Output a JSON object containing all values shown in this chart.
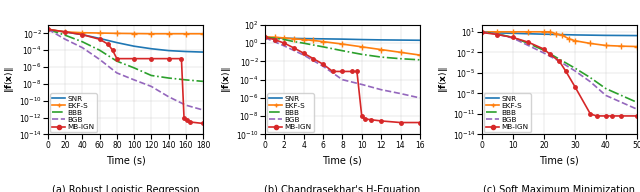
{
  "panels": [
    {
      "title": "(a) Robust Logistic Regression",
      "xlabel": "Time (s)",
      "xlim": [
        0,
        180
      ],
      "xticks": [
        0,
        20,
        40,
        60,
        80,
        100,
        120,
        140,
        160,
        180
      ],
      "ylim": [
        1e-14,
        0.1
      ],
      "curves": {
        "SNR": {
          "color": "#1f77b4",
          "ls": "-",
          "lw": 1.2,
          "marker": null,
          "ms": 0,
          "x": [
            0,
            10,
            20,
            40,
            60,
            80,
            100,
            120,
            140,
            160,
            180
          ],
          "y": [
            0.03,
            0.02,
            0.015,
            0.007,
            0.0025,
            0.0008,
            0.0003,
            0.00015,
            9e-05,
            7e-05,
            6e-05
          ]
        },
        "EKF-S": {
          "color": "#ff7f0e",
          "ls": "-",
          "lw": 1.2,
          "marker": "+",
          "ms": 4,
          "x": [
            0,
            20,
            40,
            60,
            80,
            100,
            120,
            140,
            160,
            180
          ],
          "y": [
            0.03,
            0.015,
            0.012,
            0.011,
            0.01,
            0.0095,
            0.009,
            0.009,
            0.009,
            0.009
          ]
        },
        "BBB": {
          "color": "#2ca02c",
          "ls": "-.",
          "lw": 1.2,
          "marker": null,
          "ms": 0,
          "x": [
            0,
            20,
            40,
            60,
            80,
            100,
            120,
            140,
            160,
            180
          ],
          "y": [
            0.03,
            0.006,
            0.001,
            0.0001,
            5e-06,
            8e-07,
            1e-07,
            5e-08,
            3e-08,
            2e-08
          ]
        },
        "BGB": {
          "color": "#9467bd",
          "ls": "--",
          "lw": 1.2,
          "marker": null,
          "ms": 0,
          "x": [
            0,
            20,
            40,
            60,
            80,
            100,
            120,
            140,
            160,
            180
          ],
          "y": [
            0.03,
            0.002,
            0.0002,
            8e-06,
            2e-07,
            3e-08,
            5e-09,
            3e-10,
            3e-11,
            8e-12
          ]
        },
        "MB-IGN": {
          "color": "#d62728",
          "ls": "-",
          "lw": 1.2,
          "marker": "o",
          "ms": 2.5,
          "x": [
            0,
            20,
            40,
            60,
            70,
            75,
            80,
            100,
            120,
            140,
            155,
            158,
            162,
            165,
            180
          ],
          "y": [
            0.03,
            0.015,
            0.007,
            0.002,
            0.0005,
            0.0001,
            1e-05,
            1e-05,
            1e-05,
            1e-05,
            1e-05,
            1e-12,
            5e-13,
            3e-13,
            2e-13
          ]
        }
      }
    },
    {
      "title": "(b) Chandrasekhar's H-Equation",
      "xlabel": "Time (s)",
      "xlim": [
        0,
        16
      ],
      "xticks": [
        0,
        2,
        4,
        6,
        8,
        10,
        12,
        14,
        16
      ],
      "ylim": [
        1e-10,
        100.0
      ],
      "curves": {
        "SNR": {
          "color": "#1f77b4",
          "ls": "-",
          "lw": 1.2,
          "marker": null,
          "ms": 0,
          "x": [
            0,
            2,
            4,
            6,
            8,
            10,
            12,
            14,
            16
          ],
          "y": [
            4.0,
            3.5,
            3.2,
            3.0,
            2.8,
            2.5,
            2.3,
            2.2,
            2.1
          ]
        },
        "EKF-S": {
          "color": "#ff7f0e",
          "ls": "-",
          "lw": 1.2,
          "marker": "+",
          "ms": 4,
          "x": [
            0,
            1,
            2,
            3,
            4,
            5,
            6,
            8,
            10,
            12,
            14,
            16
          ],
          "y": [
            5.0,
            4.5,
            3.8,
            3.0,
            2.5,
            2.0,
            1.5,
            0.8,
            0.4,
            0.2,
            0.1,
            0.05
          ]
        },
        "BBB": {
          "color": "#2ca02c",
          "ls": "-.",
          "lw": 1.2,
          "marker": null,
          "ms": 0,
          "x": [
            0,
            1,
            2,
            3,
            4,
            6,
            8,
            10,
            12,
            14,
            16
          ],
          "y": [
            4.5,
            3.5,
            2.5,
            1.5,
            1.0,
            0.4,
            0.15,
            0.06,
            0.03,
            0.02,
            0.015
          ]
        },
        "BGB": {
          "color": "#9467bd",
          "ls": "--",
          "lw": 1.2,
          "marker": null,
          "ms": 0,
          "x": [
            0,
            2,
            4,
            6,
            8,
            10,
            12,
            14,
            16
          ],
          "y": [
            4.0,
            0.5,
            0.05,
            0.003,
            0.0001,
            3e-05,
            8e-06,
            3e-06,
            1e-06
          ]
        },
        "MB-IGN": {
          "color": "#d62728",
          "ls": "-",
          "lw": 1.2,
          "marker": "o",
          "ms": 2.5,
          "x": [
            0,
            1,
            2,
            3,
            4,
            5,
            6,
            7,
            8,
            9,
            9.5,
            10,
            10.3,
            11,
            12,
            14,
            16
          ],
          "y": [
            4.5,
            2.5,
            1.0,
            0.3,
            0.08,
            0.02,
            0.005,
            0.0008,
            0.0008,
            0.0008,
            0.0008,
            1e-08,
            5e-09,
            4e-09,
            3e-09,
            2e-09,
            2e-09
          ]
        }
      }
    },
    {
      "title": "(c) Soft Maximum Minimization",
      "xlabel": "Time (s)",
      "xlim": [
        0,
        50
      ],
      "xticks": [
        0,
        10,
        20,
        30,
        40,
        50
      ],
      "ylim": [
        1e-14,
        100.0
      ],
      "curves": {
        "SNR": {
          "color": "#1f77b4",
          "ls": "-",
          "lw": 1.2,
          "marker": null,
          "ms": 0,
          "x": [
            0,
            5,
            10,
            20,
            30,
            40,
            50
          ],
          "y": [
            8.0,
            7.0,
            6.0,
            4.5,
            3.5,
            3.0,
            2.8
          ]
        },
        "EKF-S": {
          "color": "#ff7f0e",
          "ls": "-",
          "lw": 1.2,
          "marker": "+",
          "ms": 4,
          "x": [
            0,
            5,
            10,
            15,
            20,
            22,
            24,
            26,
            28,
            30,
            35,
            40,
            45,
            50
          ],
          "y": [
            10.0,
            10.0,
            10.0,
            10.0,
            10.0,
            10.0,
            5.0,
            3.0,
            1.0,
            0.5,
            0.2,
            0.1,
            0.08,
            0.07
          ]
        },
        "BBB": {
          "color": "#2ca02c",
          "ls": "-.",
          "lw": 1.2,
          "marker": null,
          "ms": 0,
          "x": [
            0,
            5,
            10,
            15,
            20,
            25,
            30,
            35,
            40,
            45,
            50
          ],
          "y": [
            10.0,
            5.0,
            1.5,
            0.2,
            0.02,
            0.001,
            5e-05,
            2e-06,
            5e-08,
            5e-09,
            5e-10
          ]
        },
        "BGB": {
          "color": "#9467bd",
          "ls": "--",
          "lw": 1.2,
          "marker": null,
          "ms": 0,
          "x": [
            0,
            5,
            10,
            15,
            20,
            25,
            30,
            35,
            40,
            45,
            50
          ],
          "y": [
            10.0,
            4.5,
            1.2,
            0.1,
            0.008,
            0.0005,
            2e-05,
            5e-07,
            5e-09,
            5e-10,
            5e-11
          ]
        },
        "MB-IGN": {
          "color": "#d62728",
          "ls": "-",
          "lw": 1.2,
          "marker": "o",
          "ms": 2.5,
          "x": [
            0,
            5,
            10,
            15,
            20,
            22,
            25,
            27,
            30,
            35,
            37,
            40,
            42,
            45,
            50
          ],
          "y": [
            8.0,
            4.0,
            1.5,
            0.3,
            0.03,
            0.005,
            0.0005,
            2e-05,
            1e-07,
            1e-11,
            5e-12,
            5e-12,
            5e-12,
            5e-12,
            5e-12
          ]
        }
      }
    }
  ],
  "legend_labels": [
    "SNR",
    "EKF-S",
    "BBB",
    "BGB",
    "MB-IGN"
  ],
  "legend_colors": [
    "#1f77b4",
    "#ff7f0e",
    "#2ca02c",
    "#9467bd",
    "#d62728"
  ],
  "legend_ls": [
    "-",
    "-",
    "-.",
    "--",
    "-"
  ],
  "legend_markers": [
    null,
    "+",
    null,
    null,
    "o"
  ]
}
